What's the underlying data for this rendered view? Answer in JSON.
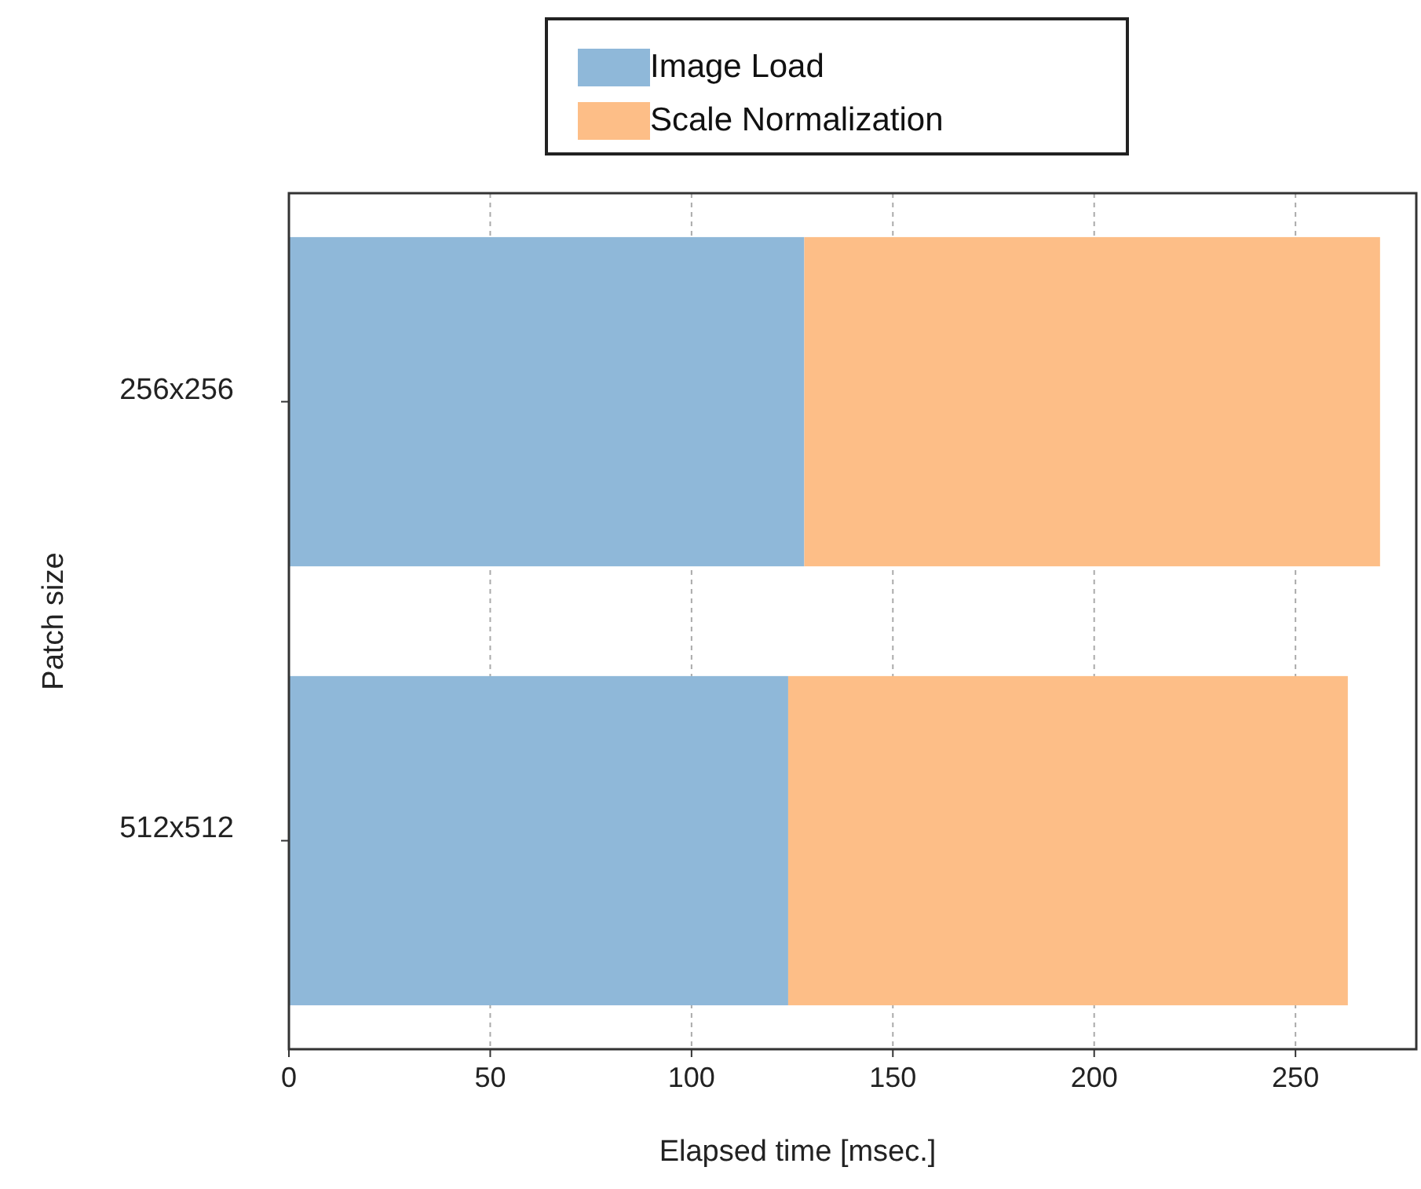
{
  "chart_data": {
    "type": "bar",
    "orientation": "horizontal",
    "stacked": true,
    "categories": [
      "256x256",
      "512x512"
    ],
    "series": [
      {
        "name": "Image Load",
        "color": "#8fb8d9",
        "values": [
          128,
          124
        ]
      },
      {
        "name": "Scale Normalization",
        "color": "#fdbe87",
        "values": [
          143,
          139
        ]
      }
    ],
    "xlim": [
      0,
      280
    ],
    "xticks": [
      0,
      50,
      100,
      150,
      200,
      250
    ],
    "xlabel": "Elapsed time [msec.]",
    "ylabel": "Patch size",
    "grid": "x",
    "legend": "top"
  }
}
